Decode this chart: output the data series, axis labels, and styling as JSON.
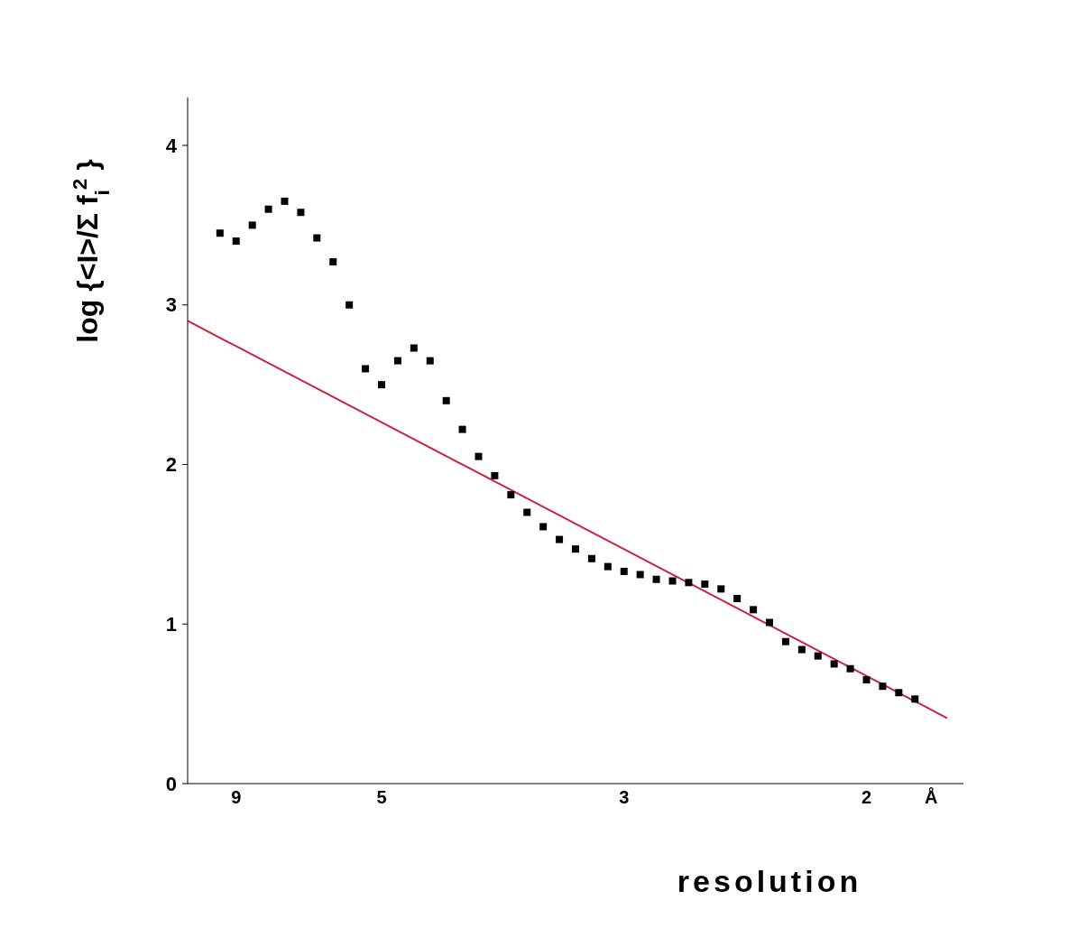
{
  "chart_data": {
    "type": "scatter",
    "xlabel": "resolution",
    "ylabel": "log {<I>/Σ f$_{i}$$^{2}$ }",
    "categories": [
      null,
      null,
      null,
      "9",
      null,
      null,
      null,
      null,
      null,
      null,
      null,
      null,
      "5",
      null,
      null,
      null,
      null,
      null,
      null,
      null,
      null,
      null,
      null,
      null,
      null,
      null,
      null,
      "3",
      null,
      null,
      null,
      null,
      null,
      null,
      null,
      null,
      null,
      null,
      null,
      null,
      null,
      null,
      "2",
      null,
      null,
      null,
      "Å",
      null,
      null
    ],
    "ylim": [
      0,
      4.3
    ],
    "yticks": [
      0,
      1,
      2,
      3,
      4
    ],
    "series": [
      {
        "type": "scatter",
        "marker": "square",
        "color": "#000000",
        "values": [
          null,
          null,
          3.45,
          3.4,
          3.5,
          3.6,
          3.65,
          3.58,
          3.42,
          3.27,
          3.0,
          2.6,
          2.5,
          2.65,
          2.73,
          2.65,
          2.4,
          2.22,
          2.05,
          1.93,
          1.81,
          1.7,
          1.61,
          1.53,
          1.47,
          1.41,
          1.36,
          1.33,
          1.31,
          1.28,
          1.27,
          1.26,
          1.25,
          1.22,
          1.16,
          1.09,
          1.01,
          0.89,
          0.84,
          0.8,
          0.75,
          0.72,
          0.65,
          0.61,
          0.57,
          0.53,
          null,
          null,
          null
        ]
      },
      {
        "type": "line",
        "marker": "none",
        "color": "#cc2244",
        "values": [
          2.9,
          null,
          null,
          null,
          null,
          null,
          null,
          null,
          null,
          null,
          null,
          null,
          null,
          null,
          null,
          null,
          null,
          null,
          null,
          null,
          null,
          null,
          null,
          null,
          null,
          null,
          null,
          null,
          null,
          null,
          null,
          null,
          null,
          null,
          null,
          null,
          null,
          null,
          null,
          null,
          null,
          null,
          null,
          null,
          null,
          null,
          null,
          0.41,
          null
        ]
      }
    ]
  }
}
